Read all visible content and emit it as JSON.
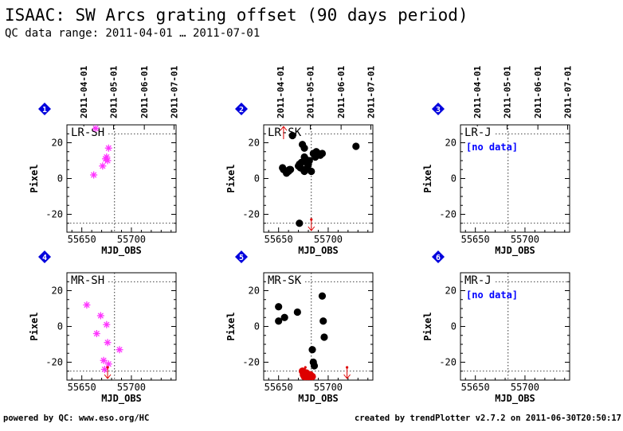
{
  "header": {
    "title": "ISAAC: SW Arcs grating offset (90 days period)",
    "subtitle": "QC data range: 2011-04-01 … 2011-07-01"
  },
  "footer": {
    "left": "powered by QC: www.eso.org/HC",
    "right": "created by trendPlotter v2.7.2 on 2011-06-30T20:50:17"
  },
  "colors": {
    "magenta": "#ff33ff",
    "black": "#000000",
    "red": "#dd0000",
    "blue_badge": "#0000dd",
    "nodata_text": "#0000ff"
  },
  "chart_data": [
    {
      "type": "scatter",
      "panel": 1,
      "label": "LR-SH",
      "xlabel": "MJD_OBS",
      "ylabel": "Pixel",
      "xlim": [
        55635,
        55745
      ],
      "ylim": [
        -30,
        30
      ],
      "xticks": [
        55650,
        55700
      ],
      "yticks": [
        -20,
        0,
        20
      ],
      "date_ticks": [
        "2011-04-01",
        "2011-05-01",
        "2011-06-01",
        "2011-07-01"
      ],
      "reference_lines": {
        "y": [
          25,
          -25
        ],
        "x": [
          55683
        ]
      },
      "series": [
        {
          "marker": "asterisk",
          "color": "magenta",
          "x": [
            55662,
            55664,
            55671,
            55674,
            55675,
            55676,
            55677
          ],
          "y": [
            2,
            28,
            7,
            11,
            12,
            10,
            17
          ]
        }
      ],
      "nodata": false
    },
    {
      "type": "scatter",
      "panel": 2,
      "label": "LR-SK",
      "xlabel": "MJD_OBS",
      "ylabel": "Pixel",
      "xlim": [
        55635,
        55745
      ],
      "ylim": [
        -30,
        30
      ],
      "xticks": [
        55650,
        55700
      ],
      "yticks": [
        -20,
        0,
        20
      ],
      "date_ticks": [
        "2011-04-01",
        "2011-05-01",
        "2011-06-01",
        "2011-07-01"
      ],
      "reference_lines": {
        "y": [
          25,
          -25
        ],
        "x": [
          55683
        ]
      },
      "series": [
        {
          "marker": "dot",
          "color": "black",
          "x": [
            55654,
            55658,
            55660,
            55661,
            55662,
            55664,
            55670,
            55671,
            55672,
            55673,
            55674,
            55675,
            55676,
            55676,
            55677,
            55678,
            55679,
            55680,
            55681,
            55683,
            55685,
            55687,
            55688,
            55690,
            55692,
            55694,
            55728,
            55676,
            55671,
            55655
          ],
          "y": [
            6,
            3,
            4,
            5,
            5,
            24,
            7,
            8,
            6,
            9,
            19,
            5,
            12,
            4,
            11,
            9,
            6,
            8,
            10,
            4,
            14,
            12,
            15,
            14,
            13,
            14,
            18,
            17,
            -25,
            5
          ]
        }
      ],
      "markers": [
        {
          "type": "up",
          "x": 55655,
          "y": 28
        },
        {
          "type": "down",
          "x": 55683,
          "y": -28
        }
      ],
      "nodata": false
    },
    {
      "type": "scatter",
      "panel": 3,
      "label": "LR-J",
      "xlabel": "MJD_OBS",
      "ylabel": "Pixel",
      "xlim": [
        55635,
        55745
      ],
      "ylim": [
        -30,
        30
      ],
      "xticks": [
        55650,
        55700
      ],
      "yticks": [
        -20,
        0,
        20
      ],
      "date_ticks": [
        "2011-04-01",
        "2011-05-01",
        "2011-06-01",
        "2011-07-01"
      ],
      "reference_lines": {
        "y": [
          25,
          -25
        ],
        "x": [
          55683
        ]
      },
      "series": [],
      "nodata": true,
      "nodata_text": "[no data]"
    },
    {
      "type": "scatter",
      "panel": 4,
      "label": "MR-SH",
      "xlabel": "MJD_OBS",
      "ylabel": "Pixel",
      "xlim": [
        55635,
        55745
      ],
      "ylim": [
        -30,
        30
      ],
      "xticks": [
        55650,
        55700
      ],
      "yticks": [
        -20,
        0,
        20
      ],
      "reference_lines": {
        "y": [
          25,
          -25
        ],
        "x": [
          55683
        ]
      },
      "series": [
        {
          "marker": "asterisk",
          "color": "magenta",
          "x": [
            55655,
            55665,
            55669,
            55672,
            55673,
            55675,
            55676,
            55677,
            55688
          ],
          "y": [
            12,
            -4,
            6,
            -19,
            -24,
            1,
            -9,
            -21,
            -13
          ]
        }
      ],
      "markers": [
        {
          "type": "down",
          "x": 55676,
          "y": -28
        }
      ],
      "nodata": false
    },
    {
      "type": "scatter",
      "panel": 5,
      "label": "MR-SK",
      "xlabel": "MJD_OBS",
      "ylabel": "Pixel",
      "xlim": [
        55635,
        55745
      ],
      "ylim": [
        -30,
        30
      ],
      "xticks": [
        55650,
        55700
      ],
      "yticks": [
        -20,
        0,
        20
      ],
      "reference_lines": {
        "y": [
          25,
          -25
        ],
        "x": [
          55683
        ]
      },
      "series": [
        {
          "marker": "dot",
          "color": "black",
          "x": [
            55650,
            55650,
            55656,
            55669,
            55684,
            55685,
            55686,
            55694,
            55695,
            55696
          ],
          "y": [
            11,
            3,
            5,
            8,
            -13,
            -20,
            -22,
            17,
            3,
            -6
          ]
        },
        {
          "marker": "dot",
          "color": "red",
          "x": [
            55674,
            55675,
            55676,
            55677,
            55678,
            55679,
            55680,
            55681,
            55682,
            55684
          ],
          "y": [
            -25,
            -27,
            -28,
            -28,
            -26,
            -28,
            -27,
            -28,
            -27,
            -28
          ]
        }
      ],
      "markers": [
        {
          "type": "down",
          "x": 55677,
          "y": -28
        },
        {
          "type": "down",
          "x": 55719,
          "y": -28
        }
      ],
      "nodata": false
    },
    {
      "type": "scatter",
      "panel": 6,
      "label": "MR-J",
      "xlabel": "MJD_OBS",
      "ylabel": "Pixel",
      "xlim": [
        55635,
        55745
      ],
      "ylim": [
        -30,
        30
      ],
      "xticks": [
        55650,
        55700
      ],
      "yticks": [
        -20,
        0,
        20
      ],
      "reference_lines": {
        "y": [
          25,
          -25
        ],
        "x": [
          55683
        ]
      },
      "series": [],
      "nodata": true,
      "nodata_text": "[no data]"
    }
  ]
}
